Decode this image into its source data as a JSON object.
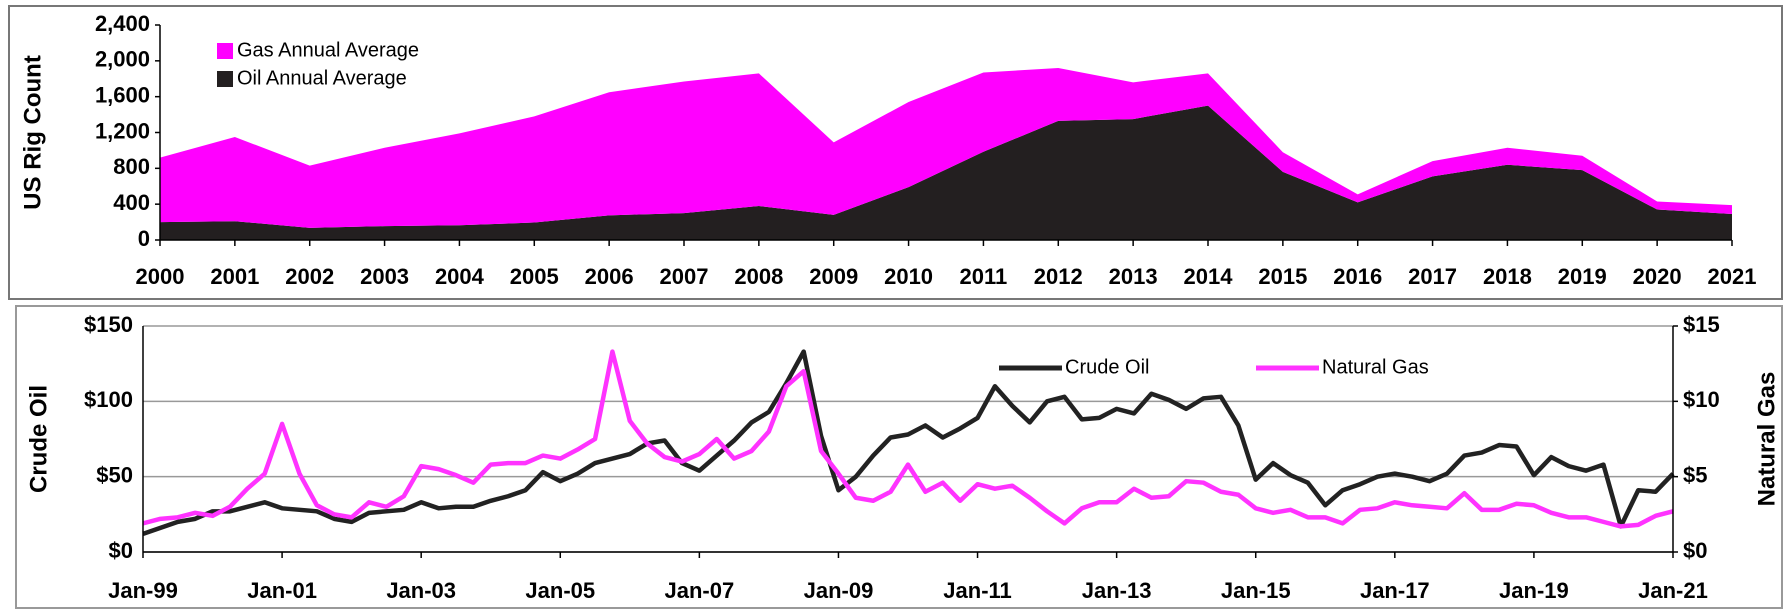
{
  "chart_data": [
    {
      "type": "area",
      "stacked": true,
      "y_label": "US Rig Count",
      "categories": [
        "2000",
        "2001",
        "2002",
        "2003",
        "2004",
        "2005",
        "2006",
        "2007",
        "2008",
        "2009",
        "2010",
        "2011",
        "2012",
        "2013",
        "2014",
        "2015",
        "2016",
        "2017",
        "2018",
        "2019",
        "2020",
        "2021"
      ],
      "series": [
        {
          "name": "Gas Annual Average",
          "color": "#ff00ff",
          "values": [
            720,
            940,
            695,
            875,
            1025,
            1185,
            1375,
            1470,
            1480,
            810,
            950,
            885,
            590,
            410,
            360,
            220,
            90,
            170,
            190,
            160,
            90,
            100
          ]
        },
        {
          "name": "Oil Annual Average",
          "color": "#231f20",
          "values": [
            200,
            210,
            135,
            155,
            165,
            195,
            275,
            300,
            380,
            280,
            590,
            985,
            1330,
            1350,
            1500,
            760,
            420,
            710,
            840,
            780,
            340,
            290
          ]
        }
      ],
      "ylim": [
        0,
        2400
      ],
      "yticks": [
        0,
        400,
        800,
        {
          "value": 1200,
          "label": "1,200"
        },
        {
          "value": 1600,
          "label": "1,600"
        },
        {
          "value": 2000,
          "label": "2,000"
        },
        {
          "value": 2400,
          "label": "2,400"
        }
      ],
      "grid": false,
      "legend": "top-left"
    },
    {
      "type": "line",
      "y_label": "Crude Oil",
      "y2_label": "Natural Gas",
      "categories": [
        "Jan-99",
        null,
        null,
        null,
        null,
        null,
        null,
        null,
        "Jan-01",
        null,
        null,
        null,
        null,
        null,
        null,
        null,
        "Jan-03",
        null,
        null,
        null,
        null,
        null,
        null,
        null,
        "Jan-05",
        null,
        null,
        null,
        null,
        null,
        null,
        null,
        "Jan-07",
        null,
        null,
        null,
        null,
        null,
        null,
        null,
        "Jan-09",
        null,
        null,
        null,
        null,
        null,
        null,
        null,
        "Jan-11",
        null,
        null,
        null,
        null,
        null,
        null,
        null,
        "Jan-13",
        null,
        null,
        null,
        null,
        null,
        null,
        null,
        "Jan-15",
        null,
        null,
        null,
        null,
        null,
        null,
        null,
        "Jan-17",
        null,
        null,
        null,
        null,
        null,
        null,
        null,
        "Jan-19",
        null,
        null,
        null,
        null,
        null,
        null,
        null,
        "Jan-21"
      ],
      "series": [
        {
          "name": "Crude Oil",
          "color": "#222222",
          "axis": "y",
          "values": [
            12,
            16,
            20,
            22,
            27,
            27,
            30,
            33,
            29,
            28,
            27,
            22,
            20,
            26,
            27,
            28,
            33,
            29,
            30,
            30,
            34,
            37,
            41,
            53,
            47,
            52,
            59,
            62,
            65,
            72,
            74,
            59,
            54,
            64,
            74,
            86,
            93,
            112,
            133,
            77,
            41,
            50,
            64,
            76,
            78,
            84,
            76,
            82,
            89,
            110,
            97,
            86,
            100,
            103,
            88,
            89,
            95,
            92,
            105,
            101,
            95,
            102,
            103,
            84,
            48,
            59,
            51,
            46,
            31,
            41,
            45,
            50,
            52,
            50,
            47,
            52,
            64,
            66,
            71,
            70,
            51,
            63,
            57,
            54,
            58,
            17,
            41,
            40,
            52
          ]
        },
        {
          "name": "Natural Gas",
          "color": "#ff33ff",
          "axis": "y2",
          "values": [
            1.9,
            2.2,
            2.3,
            2.6,
            2.4,
            3.0,
            4.2,
            5.2,
            8.5,
            5.2,
            3.1,
            2.5,
            2.3,
            3.3,
            3.0,
            3.7,
            5.7,
            5.5,
            5.1,
            4.6,
            5.8,
            5.9,
            5.9,
            6.4,
            6.2,
            6.8,
            7.5,
            13.3,
            8.7,
            7.2,
            6.3,
            6.0,
            6.5,
            7.5,
            6.2,
            6.7,
            8.0,
            11.0,
            12.0,
            6.7,
            5.2,
            3.6,
            3.4,
            4.0,
            5.8,
            4.0,
            4.6,
            3.4,
            4.5,
            4.2,
            4.4,
            3.6,
            2.7,
            1.9,
            2.9,
            3.3,
            3.3,
            4.2,
            3.6,
            3.7,
            4.7,
            4.6,
            4.0,
            3.8,
            2.9,
            2.6,
            2.8,
            2.3,
            2.3,
            1.9,
            2.8,
            2.9,
            3.3,
            3.1,
            3.0,
            2.9,
            3.9,
            2.8,
            2.8,
            3.2,
            3.1,
            2.6,
            2.3,
            2.3,
            2.0,
            1.7,
            1.8,
            2.4,
            2.7
          ]
        }
      ],
      "ylim": [
        0,
        150
      ],
      "yticks": [
        {
          "value": 0,
          "label": "$0"
        },
        {
          "value": 50,
          "label": "$50"
        },
        {
          "value": 100,
          "label": "$100"
        },
        {
          "value": 150,
          "label": "$150"
        }
      ],
      "y2lim": [
        0,
        15
      ],
      "y2ticks": [
        {
          "value": 0,
          "label": "$0"
        },
        {
          "value": 5,
          "label": "$5"
        },
        {
          "value": 10,
          "label": "$10"
        },
        {
          "value": 15,
          "label": "$15"
        }
      ],
      "grid": true,
      "legend": "top-right"
    }
  ]
}
